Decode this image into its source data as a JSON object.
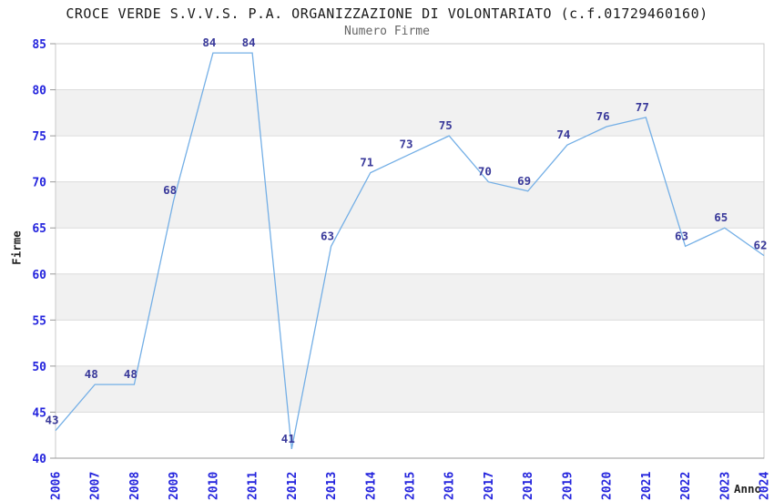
{
  "chart_data": {
    "type": "line",
    "title": "CROCE VERDE S.V.V.S. P.A. ORGANIZZAZIONE DI VOLONTARIATO (c.f.01729460160)",
    "subtitle": "Numero Firme",
    "xlabel": "Anno",
    "ylabel": "Firme",
    "categories": [
      "2006",
      "2007",
      "2008",
      "2009",
      "2010",
      "2011",
      "2012",
      "2013",
      "2014",
      "2015",
      "2016",
      "2017",
      "2018",
      "2019",
      "2020",
      "2021",
      "2022",
      "2023",
      "2024"
    ],
    "values": [
      43,
      48,
      48,
      68,
      84,
      84,
      41,
      63,
      71,
      73,
      75,
      70,
      69,
      74,
      76,
      77,
      63,
      65,
      62
    ],
    "ylim": [
      40,
      85
    ],
    "ytick_step": 5,
    "grid": true,
    "legend": "none",
    "colors": {
      "line": "#74afe6",
      "tick_label": "#2424dd",
      "data_label": "#39399a",
      "band": "#f1f1f1",
      "grid_line": "#dcdcdc",
      "border": "#c9c9c9",
      "axis_line": "#999999",
      "title": "#1a1a1a",
      "subtitle": "#666666",
      "axis_label": "#222222"
    }
  }
}
